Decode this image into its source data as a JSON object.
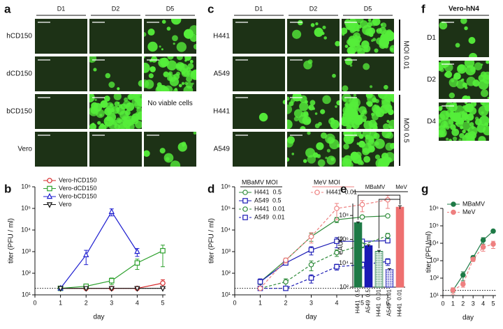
{
  "image_panels": [
    {
      "label": "a",
      "columns": [
        "D1",
        "D2",
        "D5"
      ],
      "rows": [
        "hCD150",
        "dCD150",
        "bCD150",
        "Vero"
      ],
      "annotation": "No viable cells"
    },
    {
      "label": "c",
      "columns": [
        "D1",
        "D2",
        "D5"
      ],
      "rows": [
        "H441",
        "A549",
        "H441",
        "A549"
      ],
      "groups": [
        "MOI 0.01",
        "MOI 0.5"
      ]
    },
    {
      "label": "f",
      "title": "Vero-hN4",
      "rows": [
        "D1",
        "D2",
        "D4"
      ]
    }
  ],
  "chart_data": [
    {
      "panel_label": "b",
      "type": "line",
      "log_y": true,
      "open_markers": true,
      "x": [
        1,
        2,
        3,
        4,
        5
      ],
      "xlim": [
        0,
        5
      ],
      "xticks": [
        0,
        1,
        2,
        3,
        4,
        5
      ],
      "ylim": [
        10,
        1000000
      ],
      "yticks": [
        {
          "value": 10,
          "label": "10¹"
        },
        {
          "value": 100,
          "label": "10²"
        },
        {
          "value": 1000,
          "label": "10³"
        },
        {
          "value": 10000,
          "label": "10⁴"
        },
        {
          "value": 100000,
          "label": "10⁵"
        },
        {
          "value": 1000000,
          "label": "10⁶"
        }
      ],
      "xlabel": "day",
      "ylabel": "titer (PFU / ml)",
      "reference_line": 20,
      "series": [
        {
          "name": "Vero-hCD150",
          "color": "#d62728",
          "marker": "circle",
          "dashed": false,
          "values": [
            20,
            20,
            20,
            20,
            35
          ],
          "errors": [
            0,
            0,
            0,
            0,
            15
          ]
        },
        {
          "name": "Vero-dCD150",
          "color": "#2ca02c",
          "marker": "square",
          "dashed": false,
          "values": [
            20,
            25,
            45,
            300,
            1100
          ],
          "errors": [
            0,
            6,
            15,
            150,
            900
          ]
        },
        {
          "name": "Vero-bCD150",
          "color": "#1f1fd0",
          "marker": "triangle",
          "dashed": false,
          "values": [
            20,
            700,
            70000,
            1000,
            null
          ],
          "errors": [
            0,
            450,
            25000,
            400,
            null
          ]
        },
        {
          "name": "Vero",
          "color": "#111111",
          "marker": "triangle-down",
          "dashed": false,
          "values": [
            20,
            20,
            20,
            20,
            20
          ],
          "errors": [
            0,
            0,
            0,
            0,
            0
          ]
        }
      ]
    },
    {
      "panel_label": "d",
      "type": "line",
      "log_y": true,
      "open_markers": true,
      "x": [
        1,
        2,
        3,
        4,
        5,
        6
      ],
      "xlim": [
        0,
        6
      ],
      "xticks": [
        0,
        1,
        2,
        3,
        4,
        5,
        6
      ],
      "ylim": [
        10,
        1000000
      ],
      "yticks": [
        {
          "value": 10,
          "label": "10¹"
        },
        {
          "value": 100,
          "label": "10²"
        },
        {
          "value": 1000,
          "label": "10³"
        },
        {
          "value": 10000,
          "label": "10⁴"
        },
        {
          "value": 100000,
          "label": "10⁵"
        },
        {
          "value": 1000000,
          "label": "10⁶"
        }
      ],
      "xlabel": "day",
      "ylabel": "titer (PFU / ml)",
      "reference_line": 20,
      "legend_groups": [
        "MBaMV MOI",
        "MeV MOI"
      ],
      "series": [
        {
          "name": "H441  0.5",
          "group": 0,
          "color": "#2e8b3a",
          "marker": "circle",
          "dashed": false,
          "values": [
            40,
            400,
            5000,
            30000,
            40000,
            45000
          ],
          "errors": [
            10,
            80,
            2000,
            8000,
            6000,
            5000
          ]
        },
        {
          "name": "A549  0.5",
          "group": 0,
          "color": "#1a1ab5",
          "marker": "square",
          "dashed": false,
          "values": [
            40,
            300,
            1200,
            3000,
            3000,
            3200
          ],
          "errors": [
            15,
            60,
            500,
            1500,
            800,
            600
          ]
        },
        {
          "name": "H441  0.01",
          "group": 0,
          "color": "#2e8b3a",
          "marker": "circle",
          "dashed": true,
          "values": [
            20,
            40,
            250,
            900,
            2000,
            5500
          ],
          "errors": [
            0,
            15,
            120,
            300,
            500,
            1500
          ]
        },
        {
          "name": "A549  0.01",
          "group": 0,
          "color": "#1a1ab5",
          "marker": "square",
          "dashed": true,
          "values": [
            20,
            20,
            60,
            200,
            250,
            350
          ],
          "errors": [
            0,
            0,
            25,
            60,
            80,
            120
          ]
        },
        {
          "name": "H441  0.01",
          "group": 1,
          "color": "#ee8080",
          "marker": "circle",
          "dashed": true,
          "values": [
            20,
            400,
            5000,
            100000,
            150000,
            250000
          ],
          "errors": [
            0,
            100,
            2500,
            70000,
            80000,
            150000
          ]
        }
      ]
    },
    {
      "panel_label": "e",
      "type": "bar",
      "log_y": true,
      "categories": [
        "H441  0.5",
        "A549  0.5",
        "H441  0.01",
        "A549  0.01",
        "H441  0.01"
      ],
      "values": [
        25000000,
        300000,
        100000,
        3000,
        500000000
      ],
      "errors": [
        4000000,
        60000,
        20000,
        500,
        150000000
      ],
      "colors": [
        "#1e7a46",
        "#1a1ab5",
        "#1e7a46",
        "#1a1ab5",
        "#ee7070"
      ],
      "patterns": [
        "solid",
        "solid",
        "dotted",
        "dotted",
        "solid"
      ],
      "ylim": [
        100,
        1000000000
      ],
      "yticks": [
        {
          "value": 100,
          "label": "10²"
        },
        {
          "value": 10000,
          "label": "10⁴"
        },
        {
          "value": 1000000,
          "label": "10⁶"
        },
        {
          "value": 100000000,
          "label": "10⁸"
        }
      ],
      "ylabel": "eAUC",
      "group_labels": [
        "MBaMV",
        "MeV"
      ]
    },
    {
      "panel_label": "g",
      "type": "line",
      "log_y": true,
      "open_markers": false,
      "x": [
        1,
        2,
        3,
        4,
        5
      ],
      "xlim": [
        0,
        5
      ],
      "xticks": [
        0,
        1,
        2,
        3,
        4,
        5
      ],
      "ylim": [
        10,
        1000000
      ],
      "yticks": [
        {
          "value": 10,
          "label": "10¹"
        },
        {
          "value": 100,
          "label": "10²"
        },
        {
          "value": 1000,
          "label": "10³"
        },
        {
          "value": 10000,
          "label": "10⁴"
        },
        {
          "value": 100000,
          "label": "10⁵"
        },
        {
          "value": 1000000,
          "label": "10⁶"
        }
      ],
      "xlabel": "day",
      "ylabel": "titer (PFU/ml)",
      "reference_line": 20,
      "series": [
        {
          "name": "MBaMV",
          "color": "#1e7a46",
          "marker": "circle",
          "dashed": false,
          "values": [
            20,
            150,
            1500,
            15000,
            50000
          ],
          "errors": [
            5,
            80,
            400,
            6000,
            5000
          ]
        },
        {
          "name": "MeV",
          "color": "#ee8080",
          "marker": "circle",
          "dashed": true,
          "values": [
            20,
            45,
            1200,
            6000,
            9000
          ],
          "errors": [
            8,
            15,
            300,
            2500,
            4000
          ]
        }
      ]
    }
  ]
}
